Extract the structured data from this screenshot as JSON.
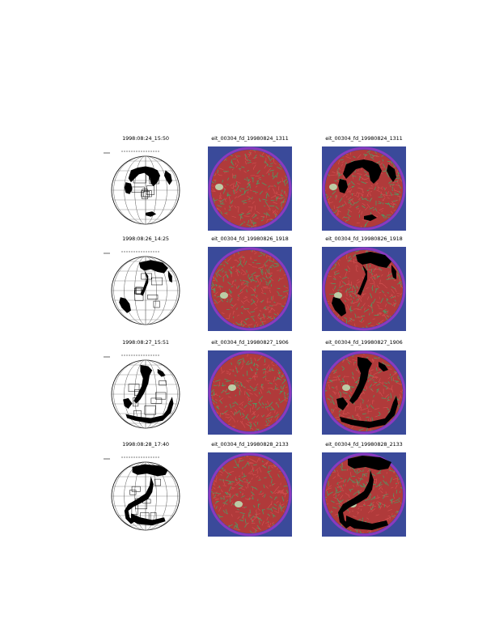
{
  "rows": [
    {
      "map_label": "1998:08:24_15:50",
      "raw_label": "eit_00304_fd_19980824_1311",
      "det_label": "eit_00304_fd_19980824_1311"
    },
    {
      "map_label": "1998:08:26_14:25",
      "raw_label": "eit_00304_fd_19980826_1918",
      "det_label": "eit_00304_fd_19980826_1918"
    },
    {
      "map_label": "1998:08:27_15:51",
      "raw_label": "eit_00304_fd_19980827_1906",
      "det_label": "eit_00304_fd_19980827_1906"
    },
    {
      "map_label": "1998:08:28_17:40",
      "raw_label": "eit_00304_fd_19980828_2133",
      "det_label": "eit_00304_fd_19980828_2133"
    }
  ],
  "colors": {
    "background": "#ffffff",
    "image_backdrop": "#3a4a9a",
    "disk_red": "#b03a3a",
    "disk_green": "#3fa86a",
    "limb": "#8a3ac0",
    "feature": "#000000"
  }
}
